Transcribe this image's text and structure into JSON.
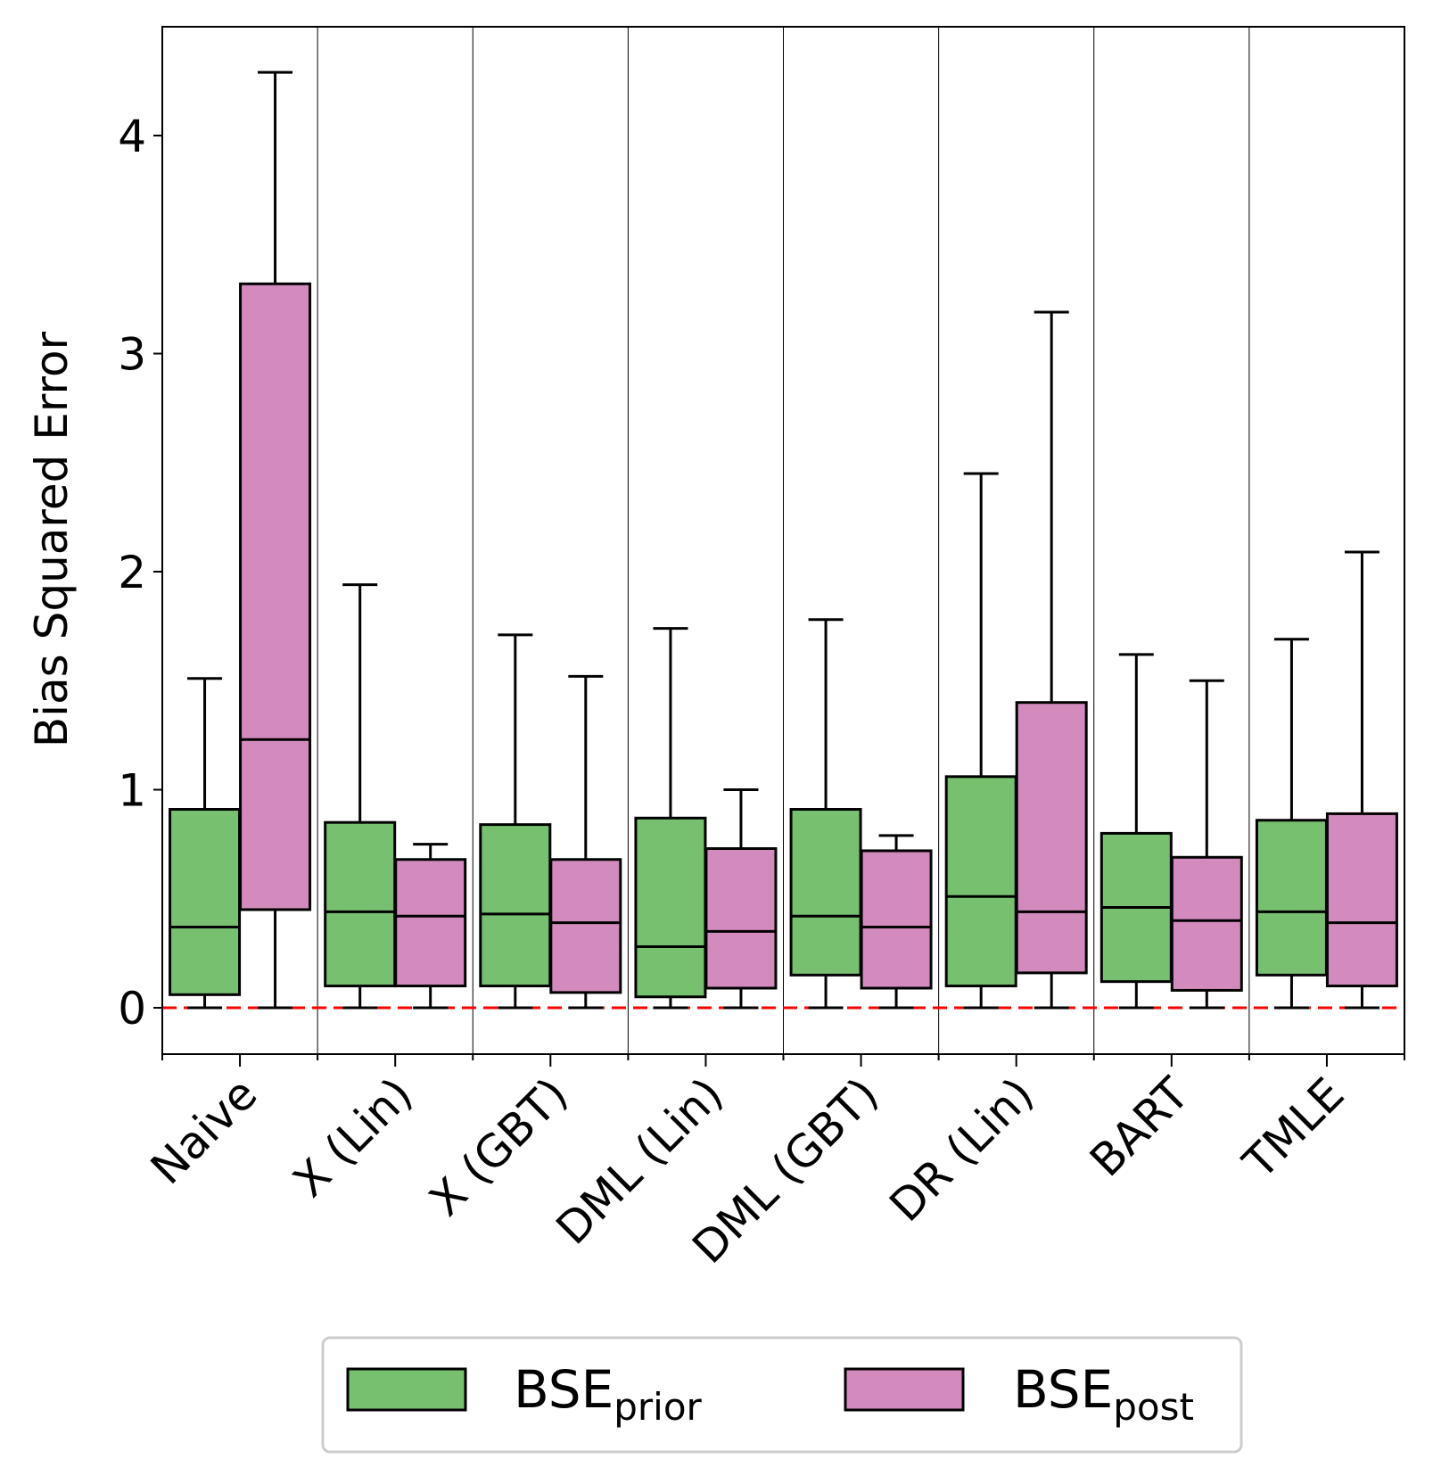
{
  "chart_data": {
    "type": "box",
    "ylabel": "Bias Squared Error",
    "ylim": [
      -0.21,
      4.5
    ],
    "yticks": [
      0,
      1,
      2,
      3,
      4
    ],
    "categories": [
      "Naive",
      "X (Lin)",
      "X (GBT)",
      "DML (Lin)",
      "DML (GBT)",
      "DR (Lin)",
      "BART",
      "TMLE"
    ],
    "reference_line": {
      "y": 0,
      "color": "#ff0000",
      "style": "dashed"
    },
    "legend_position": "bottom-center",
    "series": [
      {
        "key": "prior",
        "legend_main": "BSE",
        "legend_sub": "prior",
        "color": "#77c070",
        "boxes": [
          {
            "whisker_low": 0.0,
            "q1": 0.06,
            "median": 0.37,
            "q3": 0.91,
            "whisker_high": 1.51
          },
          {
            "whisker_low": 0.0,
            "q1": 0.1,
            "median": 0.44,
            "q3": 0.85,
            "whisker_high": 1.94
          },
          {
            "whisker_low": 0.0,
            "q1": 0.1,
            "median": 0.43,
            "q3": 0.84,
            "whisker_high": 1.71
          },
          {
            "whisker_low": 0.0,
            "q1": 0.05,
            "median": 0.28,
            "q3": 0.87,
            "whisker_high": 1.74
          },
          {
            "whisker_low": 0.0,
            "q1": 0.15,
            "median": 0.42,
            "q3": 0.91,
            "whisker_high": 1.78
          },
          {
            "whisker_low": 0.0,
            "q1": 0.1,
            "median": 0.51,
            "q3": 1.06,
            "whisker_high": 2.45
          },
          {
            "whisker_low": 0.0,
            "q1": 0.12,
            "median": 0.46,
            "q3": 0.8,
            "whisker_high": 1.62
          },
          {
            "whisker_low": 0.0,
            "q1": 0.15,
            "median": 0.44,
            "q3": 0.86,
            "whisker_high": 1.69
          }
        ]
      },
      {
        "key": "post",
        "legend_main": "BSE",
        "legend_sub": "post",
        "color": "#d38bbd",
        "boxes": [
          {
            "whisker_low": 0.0,
            "q1": 0.45,
            "median": 1.23,
            "q3": 3.32,
            "whisker_high": 4.29
          },
          {
            "whisker_low": 0.0,
            "q1": 0.1,
            "median": 0.42,
            "q3": 0.68,
            "whisker_high": 0.75
          },
          {
            "whisker_low": 0.0,
            "q1": 0.07,
            "median": 0.39,
            "q3": 0.68,
            "whisker_high": 1.52
          },
          {
            "whisker_low": 0.0,
            "q1": 0.09,
            "median": 0.35,
            "q3": 0.73,
            "whisker_high": 1.0
          },
          {
            "whisker_low": 0.0,
            "q1": 0.09,
            "median": 0.37,
            "q3": 0.72,
            "whisker_high": 0.79
          },
          {
            "whisker_low": 0.0,
            "q1": 0.16,
            "median": 0.44,
            "q3": 1.4,
            "whisker_high": 3.19
          },
          {
            "whisker_low": 0.0,
            "q1": 0.08,
            "median": 0.4,
            "q3": 0.69,
            "whisker_high": 1.5
          },
          {
            "whisker_low": 0.0,
            "q1": 0.1,
            "median": 0.39,
            "q3": 0.89,
            "whisker_high": 2.09
          }
        ]
      }
    ]
  }
}
